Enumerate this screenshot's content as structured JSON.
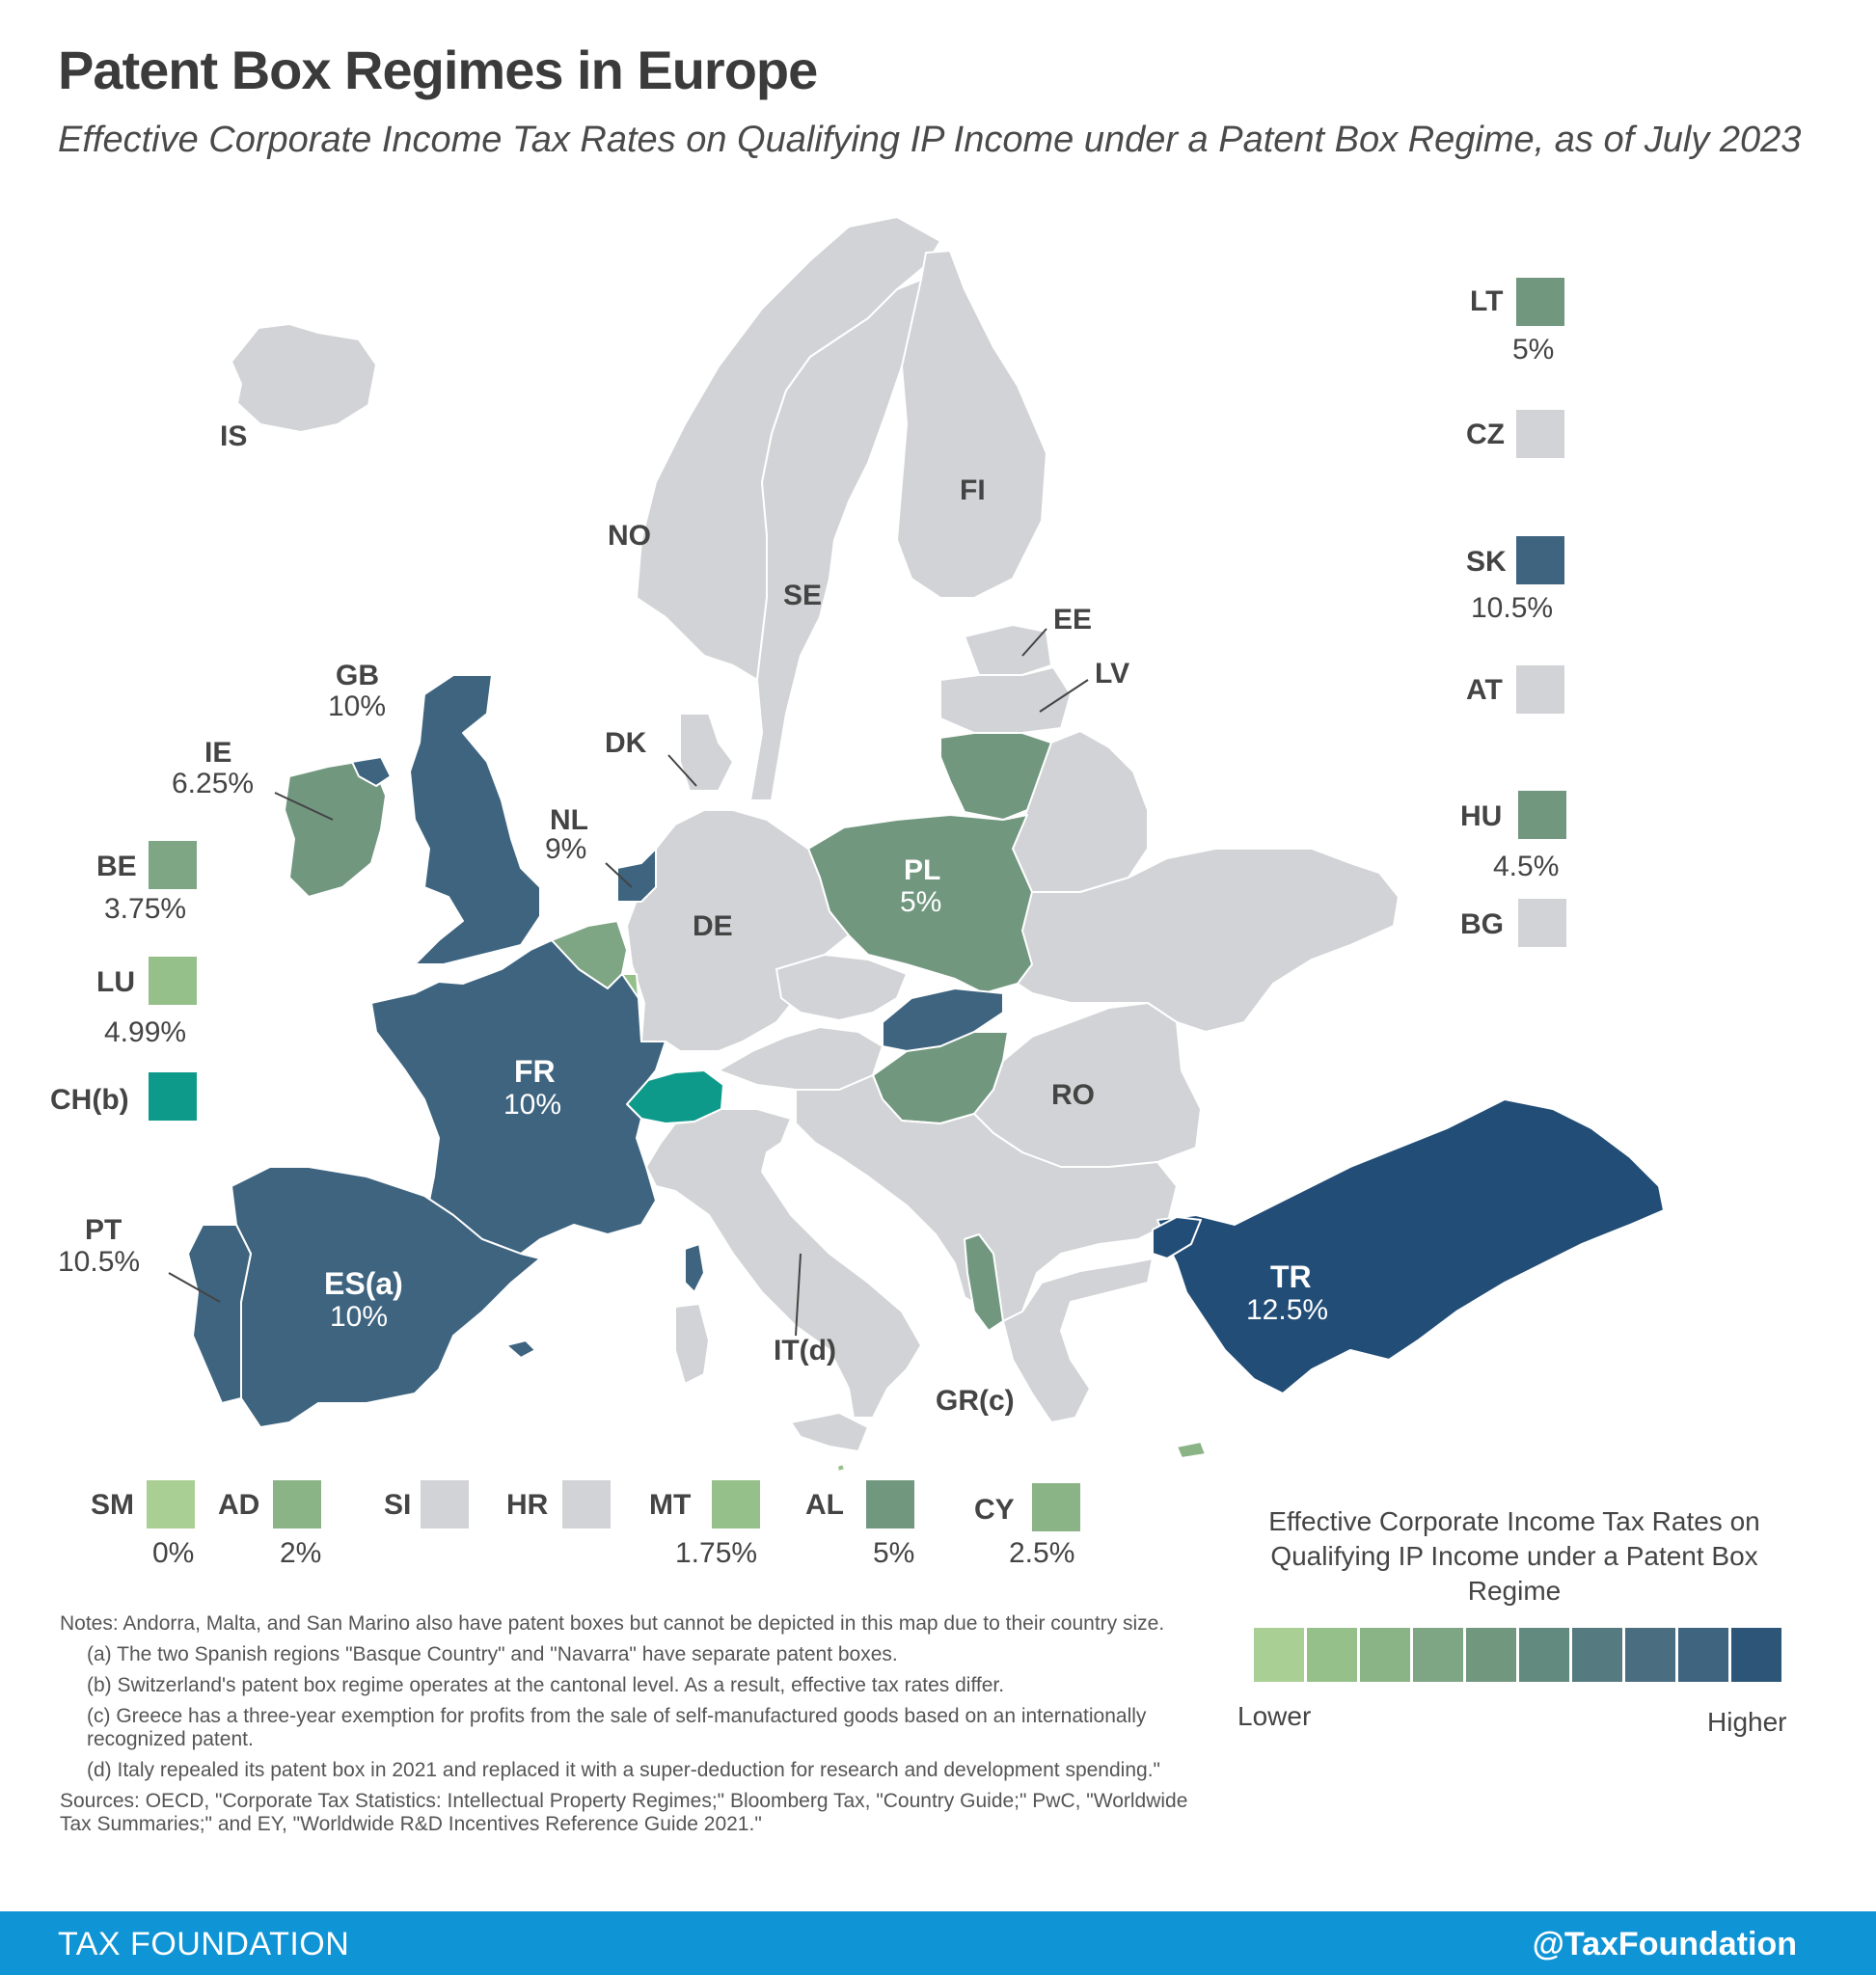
{
  "title": "Patent Box Regimes in Europe",
  "subtitle": "Effective Corporate Income Tax Rates on Qualifying IP Income under a Patent Box Regime, as of July 2023",
  "colors": {
    "no_regime": "#d2d3d6",
    "scale": [
      "#a9cf94",
      "#96c08a",
      "#8ab386",
      "#7ea584",
      "#71977f",
      "#628a7f",
      "#557b80",
      "#4a6d80",
      "#3e6480",
      "#2c5577"
    ]
  },
  "map_labels": {
    "IS": "IS",
    "NO": "NO",
    "SE": "SE",
    "FI": "FI",
    "EE": "EE",
    "LV": "LV",
    "DK": "DK",
    "DE": "DE",
    "RO": "RO",
    "IT": "IT(d)",
    "GR": "GR(c)",
    "GB": "GB",
    "GB_rate": "10%",
    "IE": "IE",
    "IE_rate": "6.25%",
    "NL": "NL",
    "NL_rate": "9%",
    "PL": "PL",
    "PL_rate": "5%",
    "FR": "FR",
    "FR_rate": "10%",
    "ES": "ES(a)",
    "ES_rate": "10%",
    "PT": "PT",
    "PT_rate": "10.5%",
    "TR": "TR",
    "TR_rate": "12.5%"
  },
  "left_boxes": [
    {
      "code": "BE",
      "rate": "3.75%",
      "color": "#7ea584"
    },
    {
      "code": "LU",
      "rate": "4.99%",
      "color": "#96c08a"
    },
    {
      "code": "CH(b)",
      "rate": "",
      "color": "#0e9a8a"
    }
  ],
  "right_boxes": [
    {
      "code": "LT",
      "rate": "5%",
      "color": "#71977f"
    },
    {
      "code": "CZ",
      "rate": "",
      "color": "#d2d3d6"
    },
    {
      "code": "SK",
      "rate": "10.5%",
      "color": "#3e6480"
    },
    {
      "code": "AT",
      "rate": "",
      "color": "#d2d3d6"
    },
    {
      "code": "HU",
      "rate": "4.5%",
      "color": "#71977f"
    },
    {
      "code": "BG",
      "rate": "",
      "color": "#d2d3d6"
    }
  ],
  "bottom_boxes": [
    {
      "code": "SM",
      "rate": "0%",
      "color": "#a9cf94"
    },
    {
      "code": "AD",
      "rate": "2%",
      "color": "#8ab386"
    },
    {
      "code": "SI",
      "rate": "",
      "color": "#d2d3d6"
    },
    {
      "code": "HR",
      "rate": "",
      "color": "#d2d3d6"
    },
    {
      "code": "MT",
      "rate": "1.75%",
      "color": "#96c08a"
    },
    {
      "code": "AL",
      "rate": "5%",
      "color": "#71977f"
    },
    {
      "code": "CY",
      "rate": "2.5%",
      "color": "#8ab386"
    }
  ],
  "legend": {
    "title": "Effective Corporate Income Tax Rates on Qualifying IP Income under a Patent Box Regime",
    "low": "Lower",
    "high": "Higher"
  },
  "notes": {
    "main": "Notes: Andorra, Malta, and San Marino also have patent boxes but cannot be depicted in this map due to their country size.",
    "a": "(a) The two Spanish regions \"Basque Country\" and \"Navarra\" have separate patent boxes.",
    "b": "(b) Switzerland's patent box regime operates at the cantonal level. As a result, effective tax rates differ.",
    "c": "(c) Greece has a three-year exemption for profits from the sale of self-manufactured goods based on an internationally recognized patent.",
    "d": "(d) Italy repealed its patent box in 2021 and replaced it with a super-deduction for research and development spending.\"",
    "sources": "Sources: OECD, \"Corporate Tax Statistics: Intellectual Property Regimes;\" Bloomberg Tax, \"Country Guide;\" PwC, \"Worldwide Tax Summaries;\" and EY, \"Worldwide R&D Incentives Reference Guide 2021.\""
  },
  "footer": {
    "left": "TAX FOUNDATION",
    "right": "@TaxFoundation"
  }
}
